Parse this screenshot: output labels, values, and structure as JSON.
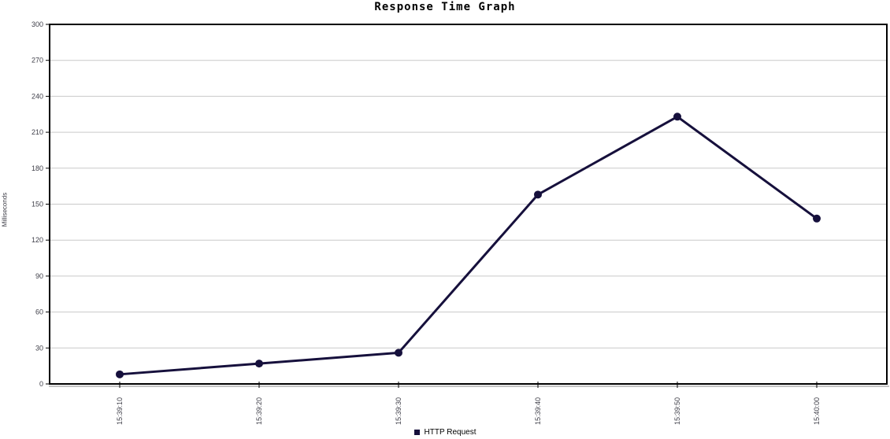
{
  "chart_data": {
    "type": "line",
    "title": "Response Time Graph",
    "xlabel": "",
    "ylabel": "Milliseconds",
    "categories": [
      "15:39:10",
      "15:39:20",
      "15:39:30",
      "15:39:40",
      "15:39:50",
      "15:40:00"
    ],
    "series": [
      {
        "name": "HTTP Request",
        "values": [
          8,
          17,
          26,
          158,
          223,
          138
        ],
        "color": "#16103C"
      }
    ],
    "ylim": [
      0,
      300
    ],
    "yticks": [
      0,
      30,
      60,
      90,
      120,
      150,
      180,
      210,
      240,
      270,
      300
    ],
    "grid": true,
    "legend_position": "bottom",
    "colors": {
      "grid": "#C9C9C9",
      "axis": "#000000",
      "bevel": "#A0A0A0",
      "tick_label": "#3F3F49",
      "background": "#FFFFFF"
    }
  }
}
